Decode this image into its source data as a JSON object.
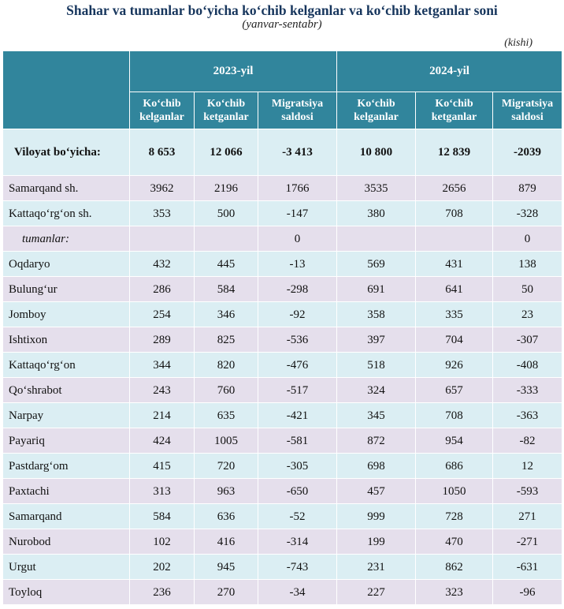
{
  "title": "Shahar va tumanlar bo‘yicha ko‘chib kelganlar va ko‘chib ketganlar soni",
  "subtitle": "(yanvar-sentabr)",
  "unit": "(kishi)",
  "years": [
    "2023-yil",
    "2024-yil"
  ],
  "columns": [
    "Ko‘chib kelganlar",
    "Ko‘chib ketganlar",
    "Migratsiya saldosi",
    "Ko‘chib kelganlar",
    "Ko‘chib ketganlar",
    "Migratsiya saldosi"
  ],
  "total": {
    "name": "Viloyat bo‘yicha:",
    "values": [
      "8 653",
      "12 066",
      "-3 413",
      "10 800",
      "12 839",
      "-2039"
    ]
  },
  "rows": [
    {
      "name": "Samarqand sh.",
      "values": [
        "3962",
        "2196",
        "1766",
        "3535",
        "2656",
        "879"
      ]
    },
    {
      "name": "Kattaqo‘rg‘on sh.",
      "values": [
        "353",
        "500",
        "-147",
        "380",
        "708",
        "-328"
      ]
    },
    {
      "name": "tumanlar:",
      "values": [
        "",
        "",
        "0",
        "",
        "",
        "0"
      ]
    },
    {
      "name": "Oqdaryo",
      "values": [
        "432",
        "445",
        "-13",
        "569",
        "431",
        "138"
      ]
    },
    {
      "name": "Bulung‘ur",
      "values": [
        "286",
        "584",
        "-298",
        "691",
        "641",
        "50"
      ]
    },
    {
      "name": "Jomboy",
      "values": [
        "254",
        "346",
        "-92",
        "358",
        "335",
        "23"
      ]
    },
    {
      "name": "Ishtixon",
      "values": [
        "289",
        "825",
        "-536",
        "397",
        "704",
        "-307"
      ]
    },
    {
      "name": "Kattaqo‘rg‘on",
      "values": [
        "344",
        "820",
        "-476",
        "518",
        "926",
        "-408"
      ]
    },
    {
      "name": "Qo‘shrabot",
      "values": [
        "243",
        "760",
        "-517",
        "324",
        "657",
        "-333"
      ]
    },
    {
      "name": "Narpay",
      "values": [
        "214",
        "635",
        "-421",
        "345",
        "708",
        "-363"
      ]
    },
    {
      "name": "Payariq",
      "values": [
        "424",
        "1005",
        "-581",
        "872",
        "954",
        "-82"
      ]
    },
    {
      "name": "Pastdarg‘om",
      "values": [
        "415",
        "720",
        "-305",
        "698",
        "686",
        "12"
      ]
    },
    {
      "name": "Paxtachi",
      "values": [
        "313",
        "963",
        "-650",
        "457",
        "1050",
        "-593"
      ]
    },
    {
      "name": "Samarqand",
      "values": [
        "584",
        "636",
        "-52",
        "999",
        "728",
        "271"
      ]
    },
    {
      "name": "Nurobod",
      "values": [
        "102",
        "416",
        "-314",
        "199",
        "470",
        "-271"
      ]
    },
    {
      "name": "Urgut",
      "values": [
        "202",
        "945",
        "-743",
        "231",
        "862",
        "-631"
      ]
    },
    {
      "name": "Toyloq",
      "values": [
        "236",
        "270",
        "-34",
        "227",
        "323",
        "-96"
      ]
    }
  ]
}
